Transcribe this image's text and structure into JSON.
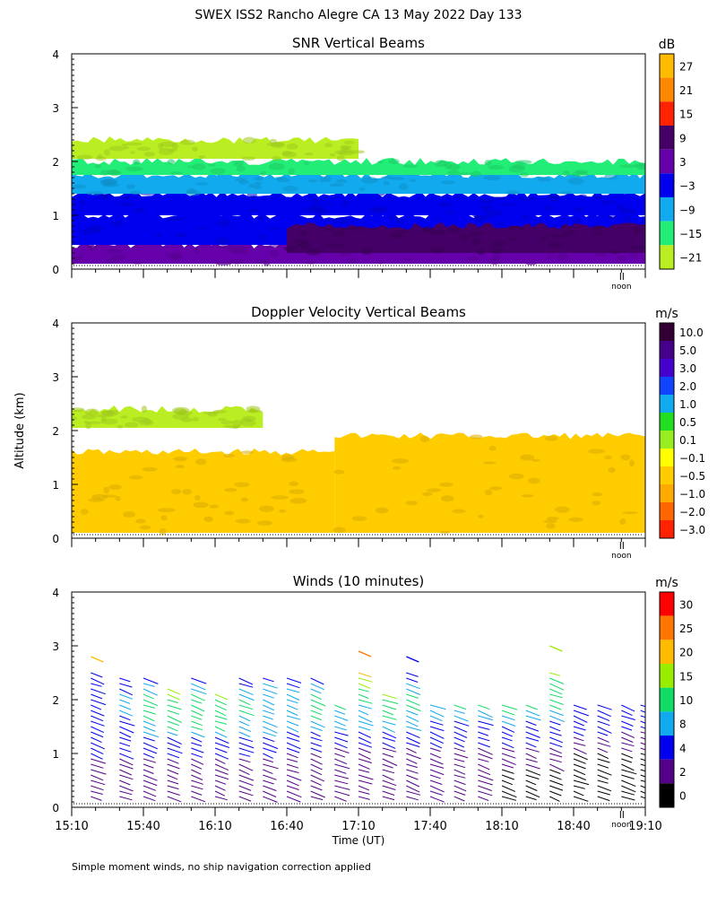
{
  "page": {
    "main_title": "SWEX ISS2 Rancho Alegre CA  13 May 2022 Day 133",
    "shared_ylabel": "Altitude (km)",
    "footnote": "Simple moment winds, no ship navigation correction applied",
    "noon_label": "noon"
  },
  "chart_data": [
    {
      "type": "heatmap",
      "title": "SNR Vertical Beams",
      "ylabel": "Altitude (km)",
      "ylim": [
        0,
        4
      ],
      "yticks": [
        "0",
        "1",
        "2",
        "3",
        "4"
      ],
      "x_range": [
        "15:10",
        "19:10"
      ],
      "colorbar": {
        "unit": "dB",
        "labels": [
          "27",
          "21",
          "15",
          "9",
          "3",
          "−3",
          "−9",
          "−15",
          "−21"
        ],
        "colors": [
          "#ffbb00",
          "#ff8800",
          "#ff2200",
          "#440066",
          "#6600aa",
          "#0000ee",
          "#11aaee",
          "#22ee77",
          "#bbee22"
        ]
      },
      "layers": [
        {
          "alt_bottom": 0.1,
          "alt_top": 0.45,
          "start": "15:10",
          "end": "19:10",
          "color": "#6600aa"
        },
        {
          "alt_bottom": 0.45,
          "alt_top": 1.0,
          "start": "15:10",
          "end": "19:10",
          "color": "#0000ee"
        },
        {
          "alt_bottom": 0.3,
          "alt_top": 0.8,
          "start": "16:40",
          "end": "19:10",
          "color": "#440066"
        },
        {
          "alt_bottom": 1.0,
          "alt_top": 1.4,
          "start": "15:10",
          "end": "19:10",
          "color": "#0000ee"
        },
        {
          "alt_bottom": 1.4,
          "alt_top": 1.75,
          "start": "15:10",
          "end": "19:10",
          "color": "#11aaee"
        },
        {
          "alt_bottom": 1.75,
          "alt_top": 2.0,
          "start": "15:10",
          "end": "19:10",
          "color": "#22ee77"
        },
        {
          "alt_bottom": 2.05,
          "alt_top": 2.4,
          "start": "15:10",
          "end": "17:10",
          "color": "#bbee22"
        }
      ]
    },
    {
      "type": "heatmap",
      "title": "Doppler Velocity Vertical Beams",
      "ylabel": "Altitude (km)",
      "ylim": [
        0,
        4
      ],
      "yticks": [
        "0",
        "1",
        "2",
        "3",
        "4"
      ],
      "x_range": [
        "15:10",
        "19:10"
      ],
      "colorbar": {
        "unit": "m/s",
        "labels": [
          "10.0",
          "5.0",
          "3.0",
          "2.0",
          "1.0",
          "0.5",
          "0.1",
          "−0.1",
          "−0.5",
          "−1.0",
          "−2.0",
          "−3.0"
        ],
        "colors": [
          "#330033",
          "#440088",
          "#4400cc",
          "#1144ff",
          "#11aaee",
          "#22dd22",
          "#99ee22",
          "#ffff00",
          "#ffcc00",
          "#ffaa00",
          "#ff6600",
          "#ff2200"
        ]
      },
      "layers": [
        {
          "alt_bottom": 0.1,
          "alt_top": 1.6,
          "start": "15:10",
          "end": "17:00",
          "color": "#ffcc00"
        },
        {
          "alt_bottom": 0.1,
          "alt_top": 1.9,
          "start": "17:00",
          "end": "19:10",
          "color": "#ffcc00"
        },
        {
          "alt_bottom": 2.05,
          "alt_top": 2.4,
          "start": "15:10",
          "end": "16:30",
          "color": "#bbee22"
        }
      ]
    },
    {
      "type": "scatter",
      "title": "Winds (10 minutes)",
      "xlabel": "Time (UT)",
      "ylabel": "Altitude (km)",
      "ylim": [
        0,
        4
      ],
      "yticks": [
        "0",
        "1",
        "2",
        "3",
        "4"
      ],
      "xticks": [
        "15:10",
        "15:40",
        "16:10",
        "16:40",
        "17:10",
        "17:40",
        "18:10",
        "18:40",
        "19:10"
      ],
      "colorbar": {
        "unit": "m/s",
        "labels": [
          "30",
          "25",
          "20",
          "15",
          "10",
          "8",
          "4",
          "2",
          "0"
        ],
        "colors": [
          "#ff0000",
          "#ff7700",
          "#ffbb00",
          "#99ee00",
          "#11dd66",
          "#11aaee",
          "#0000ee",
          "#550088",
          "#000000"
        ]
      },
      "profiles": [
        {
          "time": "15:18",
          "speeds": [
            [
              0.5,
              3
            ],
            [
              1.0,
              4
            ],
            [
              1.5,
              6
            ],
            [
              2.0,
              8
            ],
            [
              2.5,
              7
            ],
            [
              2.8,
              22
            ]
          ]
        },
        {
          "time": "15:30",
          "speeds": [
            [
              0.5,
              3
            ],
            [
              1.0,
              4
            ],
            [
              1.5,
              7
            ],
            [
              2.0,
              9
            ],
            [
              2.5,
              6
            ]
          ]
        },
        {
          "time": "15:40",
          "speeds": [
            [
              0.5,
              3
            ],
            [
              1.0,
              4
            ],
            [
              1.5,
              9
            ],
            [
              2.0,
              12
            ],
            [
              2.5,
              6
            ]
          ]
        },
        {
          "time": "15:50",
          "speeds": [
            [
              0.5,
              3
            ],
            [
              1.0,
              4
            ],
            [
              1.5,
              10
            ],
            [
              2.0,
              13
            ],
            [
              2.3,
              20
            ]
          ]
        },
        {
          "time": "16:00",
          "speeds": [
            [
              0.5,
              3
            ],
            [
              1.0,
              4
            ],
            [
              1.5,
              10
            ],
            [
              2.0,
              12
            ],
            [
              2.5,
              6
            ]
          ]
        },
        {
          "time": "16:10",
          "speeds": [
            [
              0.5,
              3
            ],
            [
              1.0,
              4
            ],
            [
              1.5,
              10
            ],
            [
              2.0,
              13
            ],
            [
              2.2,
              20
            ]
          ]
        },
        {
          "time": "16:20",
          "speeds": [
            [
              0.5,
              3
            ],
            [
              1.0,
              4
            ],
            [
              1.5,
              9
            ],
            [
              2.0,
              11
            ],
            [
              2.5,
              6
            ]
          ]
        },
        {
          "time": "16:30",
          "speeds": [
            [
              0.5,
              3
            ],
            [
              1.0,
              4
            ],
            [
              1.5,
              9
            ],
            [
              2.0,
              10
            ],
            [
              2.5,
              7
            ]
          ]
        },
        {
          "time": "16:40",
          "speeds": [
            [
              0.5,
              3
            ],
            [
              1.0,
              3
            ],
            [
              1.5,
              9
            ],
            [
              2.0,
              10
            ],
            [
              2.5,
              6
            ]
          ]
        },
        {
          "time": "16:50",
          "speeds": [
            [
              0.5,
              3
            ],
            [
              1.0,
              3
            ],
            [
              1.5,
              9
            ],
            [
              2.0,
              12
            ],
            [
              2.5,
              7
            ]
          ]
        },
        {
          "time": "17:00",
          "speeds": [
            [
              0.5,
              3
            ],
            [
              1.0,
              3
            ],
            [
              1.5,
              8
            ],
            [
              2.0,
              11
            ]
          ]
        },
        {
          "time": "17:10",
          "speeds": [
            [
              0.5,
              2
            ],
            [
              1.0,
              3
            ],
            [
              1.5,
              8
            ],
            [
              2.0,
              10
            ],
            [
              2.9,
              28
            ]
          ]
        },
        {
          "time": "17:20",
          "speeds": [
            [
              0.5,
              2
            ],
            [
              1.0,
              3
            ],
            [
              1.5,
              8
            ],
            [
              2.0,
              14
            ],
            [
              2.2,
              20
            ]
          ]
        },
        {
          "time": "17:30",
          "speeds": [
            [
              0.5,
              2
            ],
            [
              1.0,
              3
            ],
            [
              1.5,
              8
            ],
            [
              2.0,
              11
            ],
            [
              2.8,
              4
            ]
          ]
        },
        {
          "time": "17:40",
          "speeds": [
            [
              0.5,
              2
            ],
            [
              1.0,
              3
            ],
            [
              1.5,
              7
            ],
            [
              2.0,
              10
            ]
          ]
        },
        {
          "time": "17:50",
          "speeds": [
            [
              0.5,
              2
            ],
            [
              1.0,
              3
            ],
            [
              1.5,
              7
            ],
            [
              2.0,
              11
            ]
          ]
        },
        {
          "time": "18:00",
          "speeds": [
            [
              0.5,
              2
            ],
            [
              1.0,
              3
            ],
            [
              1.5,
              7
            ],
            [
              2.0,
              11
            ]
          ]
        },
        {
          "time": "18:10",
          "speeds": [
            [
              0.5,
              1
            ],
            [
              1.0,
              3
            ],
            [
              1.5,
              7
            ],
            [
              2.0,
              12
            ]
          ]
        },
        {
          "time": "18:20",
          "speeds": [
            [
              0.5,
              1
            ],
            [
              1.0,
              3
            ],
            [
              1.5,
              6
            ],
            [
              2.0,
              11
            ]
          ]
        },
        {
          "time": "18:30",
          "speeds": [
            [
              0.5,
              1
            ],
            [
              1.0,
              3
            ],
            [
              1.5,
              6
            ],
            [
              2.0,
              12
            ],
            [
              3.0,
              18
            ]
          ]
        },
        {
          "time": "18:40",
          "speeds": [
            [
              0.5,
              1
            ],
            [
              1.0,
              2
            ],
            [
              1.5,
              5
            ],
            [
              2.0,
              6
            ]
          ]
        },
        {
          "time": "18:50",
          "speeds": [
            [
              0.5,
              1
            ],
            [
              1.0,
              2
            ],
            [
              1.5,
              5
            ],
            [
              2.0,
              6
            ]
          ]
        },
        {
          "time": "19:00",
          "speeds": [
            [
              0.5,
              1
            ],
            [
              1.0,
              2
            ],
            [
              1.5,
              4
            ],
            [
              2.0,
              5
            ]
          ]
        },
        {
          "time": "19:08",
          "speeds": [
            [
              0.5,
              1
            ],
            [
              1.0,
              2
            ],
            [
              1.5,
              4
            ],
            [
              2.0,
              8
            ]
          ]
        }
      ]
    }
  ]
}
